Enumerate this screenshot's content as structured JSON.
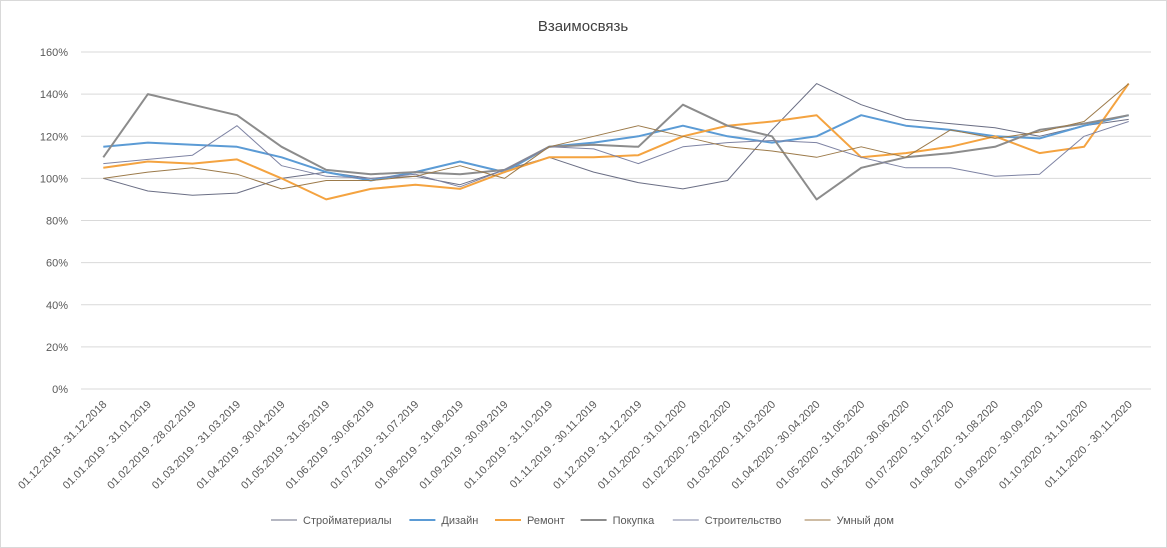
{
  "chart_data": {
    "type": "line",
    "title": "Взаимосвязь",
    "ylim": [
      0,
      160
    ],
    "yticks": [
      "0%",
      "20%",
      "40%",
      "60%",
      "80%",
      "100%",
      "120%",
      "140%",
      "160%"
    ],
    "yticks_values": [
      0,
      20,
      40,
      60,
      80,
      100,
      120,
      140,
      160
    ],
    "grid": "horizontal",
    "legend_position": "bottom",
    "categories": [
      "01.12.2018 - 31.12.2018",
      "01.01.2019 - 31.01.2019",
      "01.02.2019 - 28.02.2019",
      "01.03.2019 - 31.03.2019",
      "01.04.2019 - 30.04.2019",
      "01.05.2019 - 31.05.2019",
      "01.06.2019 - 30.06.2019",
      "01.07.2019 - 31.07.2019",
      "01.08.2019 - 31.08.2019",
      "01.09.2019 - 30.09.2019",
      "01.10.2019 - 31.10.2019",
      "01.11.2019 - 30.11.2019",
      "01.12.2019 - 31.12.2019",
      "01.01.2020 - 31.01.2020",
      "01.02.2020 - 29.02.2020",
      "01.03.2020 - 31.03.2020",
      "01.04.2020 - 30.04.2020",
      "01.05.2020 - 31.05.2020",
      "01.06.2020 - 30.06.2020",
      "01.07.2020 - 31.07.2020",
      "01.08.2020 - 31.08.2020",
      "01.09.2020 - 30.09.2020",
      "01.10.2020 - 31.10.2020",
      "01.11.2020 - 30.11.2020"
    ],
    "series": [
      {
        "name": "Стройматериалы",
        "color": "#6b6f85",
        "width": 1,
        "values": [
          100,
          94,
          92,
          93,
          100,
          103,
          100,
          101,
          97,
          104,
          110,
          103,
          98,
          95,
          99,
          123,
          145,
          135,
          128,
          126,
          124,
          120,
          125,
          128
        ]
      },
      {
        "name": "Дизайн",
        "color": "#5b9bd5",
        "width": 2,
        "values": [
          115,
          117,
          116,
          115,
          110,
          103,
          99,
          103,
          108,
          103,
          115,
          117,
          120,
          125,
          120,
          117,
          120,
          130,
          125,
          123,
          120,
          119,
          125,
          130
        ]
      },
      {
        "name": "Ремонт",
        "color": "#f4a340",
        "width": 2,
        "values": [
          105,
          108,
          107,
          109,
          100,
          90,
          95,
          97,
          95,
          103,
          110,
          110,
          111,
          120,
          125,
          127,
          130,
          110,
          112,
          115,
          120,
          112,
          115,
          145
        ]
      },
      {
        "name": "Покупка",
        "color": "#8c8c8c",
        "width": 2,
        "values": [
          110,
          140,
          135,
          130,
          115,
          104,
          102,
          103,
          102,
          104,
          115,
          116,
          115,
          135,
          125,
          120,
          90,
          105,
          110,
          112,
          115,
          123,
          126,
          130
        ]
      },
      {
        "name": "Строительство",
        "color": "#7e83a3",
        "width": 1,
        "values": [
          107,
          109,
          111,
          125,
          106,
          101,
          100,
          102,
          96,
          104,
          115,
          114,
          107,
          115,
          117,
          118,
          117,
          110,
          105,
          105,
          101,
          102,
          120,
          127
        ]
      },
      {
        "name": "Умный дом",
        "color": "#9c7a4a",
        "width": 1,
        "values": [
          100,
          103,
          105,
          102,
          95,
          99,
          99,
          101,
          106,
          100,
          115,
          120,
          125,
          120,
          115,
          113,
          110,
          115,
          110,
          123,
          119,
          122,
          127,
          145
        ]
      }
    ]
  }
}
